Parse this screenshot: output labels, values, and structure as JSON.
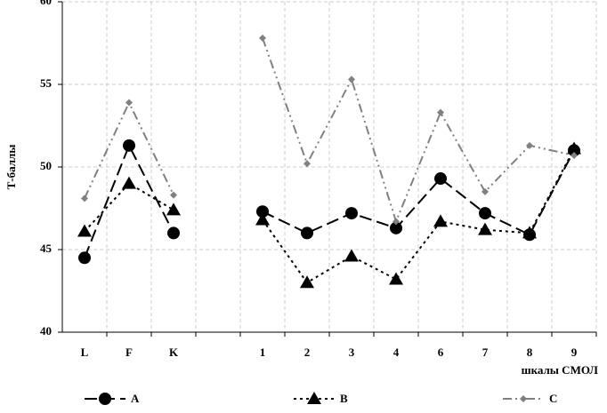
{
  "chart_data": {
    "type": "line",
    "y_label": "Т-баллы",
    "x_label": "шкалы СМОЛ",
    "categories": [
      "L",
      "F",
      "K",
      null,
      "1",
      "2",
      "3",
      "4",
      "6",
      "7",
      "8",
      "9"
    ],
    "series": [
      {
        "name": "A",
        "color": "#000000",
        "marker": "circle",
        "values": [
          44.5,
          51.3,
          46.0,
          null,
          47.3,
          46.0,
          47.2,
          46.3,
          49.3,
          47.2,
          45.9,
          51.0
        ]
      },
      {
        "name": "B",
        "color": "#000000",
        "marker": "triangle",
        "values": [
          46.1,
          49.0,
          47.4,
          null,
          46.8,
          43.0,
          44.6,
          43.2,
          46.7,
          46.2,
          46.0,
          51.1
        ]
      },
      {
        "name": "C",
        "color": "#808080",
        "marker": "diamond",
        "values": [
          48.1,
          53.9,
          48.3,
          null,
          57.8,
          50.2,
          55.3,
          46.7,
          53.3,
          48.5,
          51.3,
          50.7
        ]
      }
    ],
    "ylim": [
      40,
      60
    ],
    "yticks": [
      40,
      45,
      50,
      55,
      60
    ],
    "grid": true
  }
}
